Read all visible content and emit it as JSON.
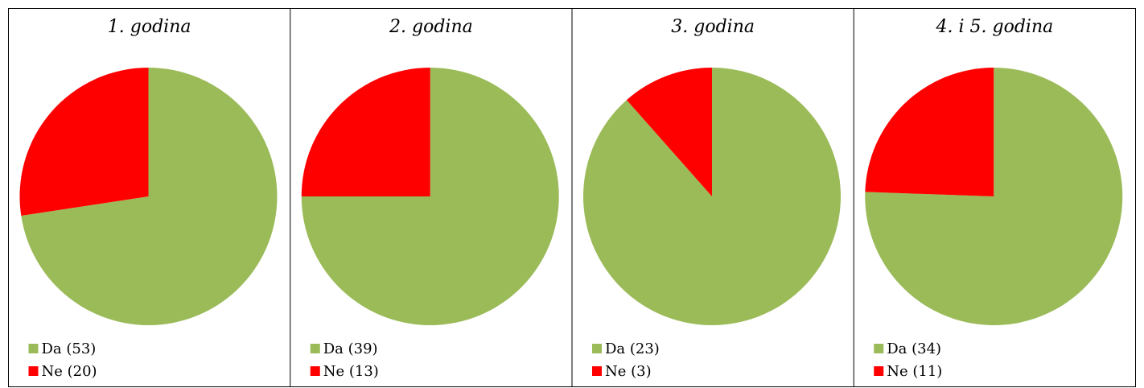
{
  "chart_data": [
    {
      "type": "pie",
      "title": "1. godina",
      "categories": [
        "Da (53)",
        "Ne (20)"
      ],
      "values": [
        53,
        20
      ],
      "colors": [
        "#9bbb59",
        "#ff0000"
      ]
    },
    {
      "type": "pie",
      "title": "2. godina",
      "categories": [
        "Da (39)",
        "Ne (13)"
      ],
      "values": [
        39,
        13
      ],
      "colors": [
        "#9bbb59",
        "#ff0000"
      ]
    },
    {
      "type": "pie",
      "title": "3. godina",
      "categories": [
        "Da (23)",
        "Ne (3)"
      ],
      "values": [
        23,
        3
      ],
      "colors": [
        "#9bbb59",
        "#ff0000"
      ]
    },
    {
      "type": "pie",
      "title": "4. i 5. godina",
      "categories": [
        "Da (34)",
        "Ne (11)"
      ],
      "values": [
        34,
        11
      ],
      "colors": [
        "#9bbb59",
        "#ff0000"
      ]
    }
  ]
}
